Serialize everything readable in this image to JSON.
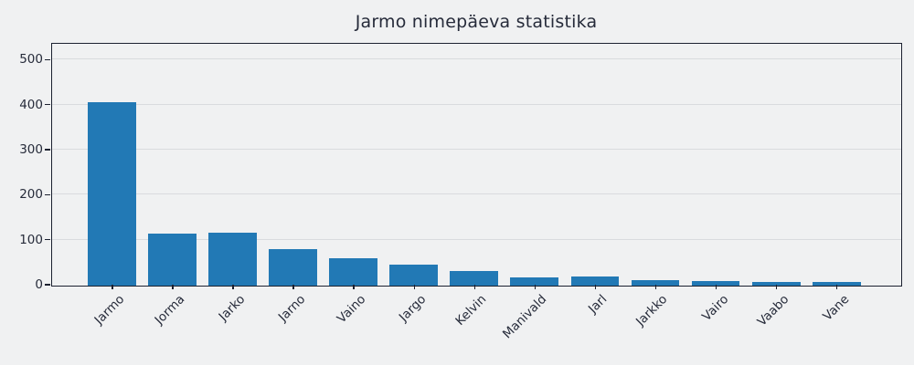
{
  "chart_data": {
    "type": "bar",
    "title": "Jarmo nimepäeva statistika",
    "categories": [
      "Jarmo",
      "Jorma",
      "Jarko",
      "Jarno",
      "Vaino",
      "Jargo",
      "Kelvin",
      "Manivald",
      "Jarl",
      "Jarkko",
      "Vairo",
      "Vaabo",
      "Vane"
    ],
    "values": [
      406,
      115,
      117,
      80,
      59,
      46,
      32,
      17,
      19,
      12,
      10,
      7,
      8
    ],
    "xlabel": "",
    "ylabel": "",
    "yticks": [
      0,
      100,
      200,
      300,
      400,
      500
    ],
    "ylim": [
      0,
      535
    ],
    "xlim": [
      -1.0,
      13.05
    ],
    "bar_width_fraction": 0.8,
    "grid": "horizontal",
    "legend": "none",
    "x_tick_rotation": -45,
    "colors": {
      "bar": "#2279b5",
      "figure_bg": "#f0f1f2",
      "plot_bg": "#f0f1f2",
      "grid": "#d9dbde",
      "spine": "#1c2130",
      "text": "#262b3a"
    }
  }
}
